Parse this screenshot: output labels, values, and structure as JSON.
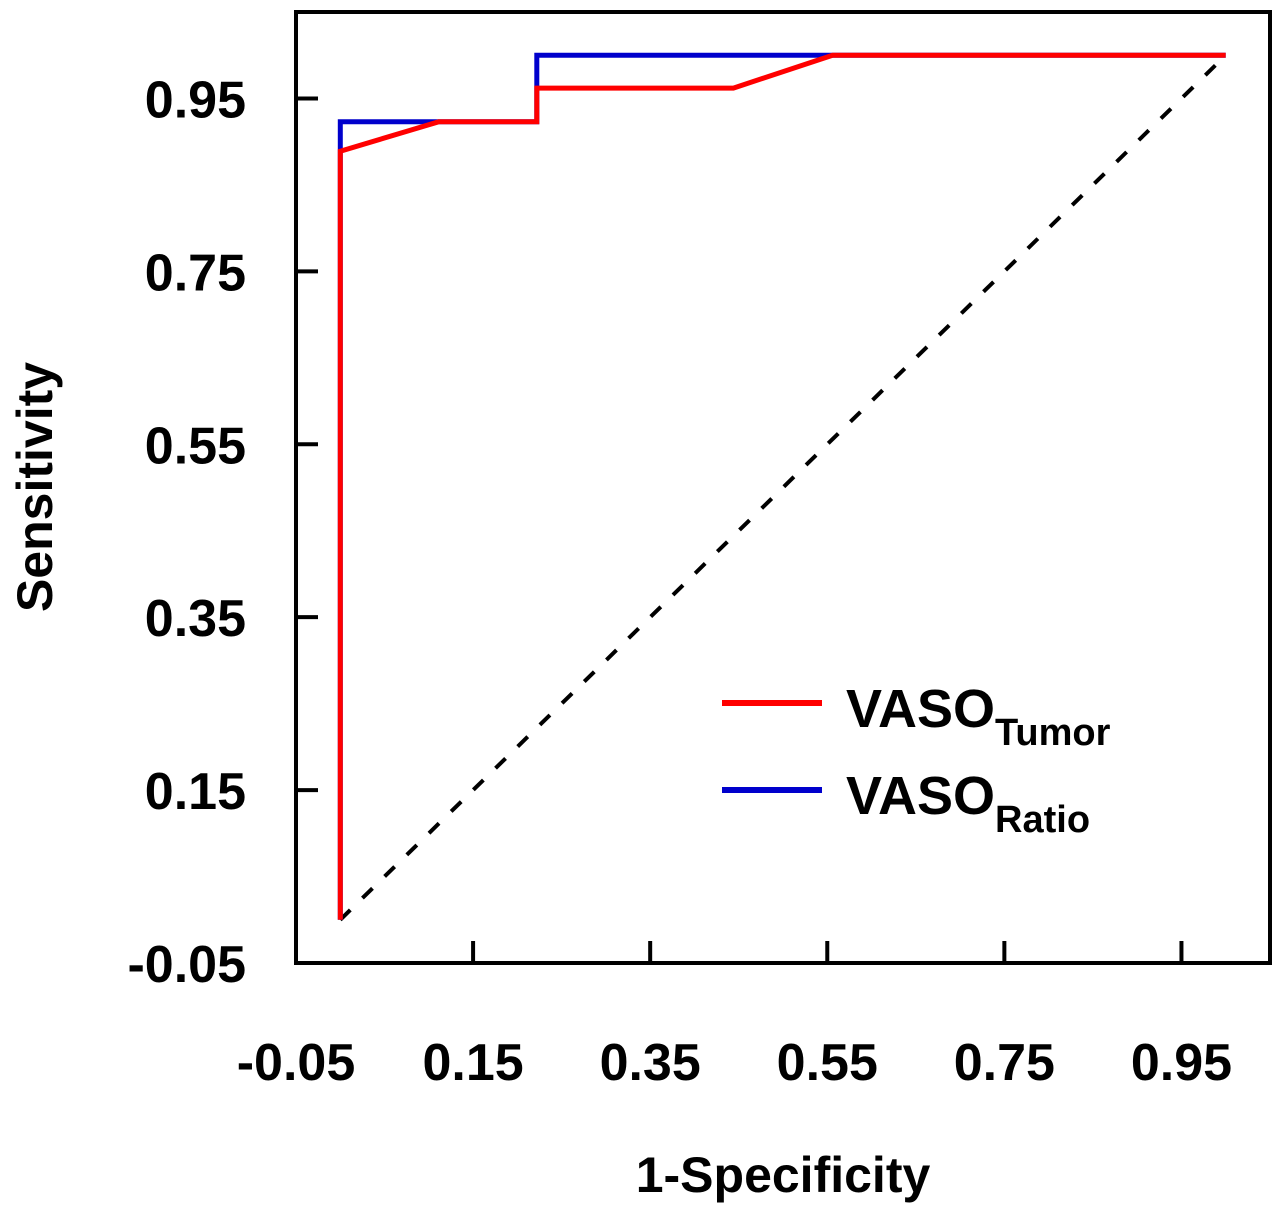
{
  "chart_data": {
    "type": "line",
    "xlabel": "1-Specificity",
    "ylabel": "Sensitivity",
    "xlim": [
      -0.05,
      1.05
    ],
    "ylim": [
      -0.05,
      1.05
    ],
    "x_ticks": [
      -0.05,
      0.15,
      0.35,
      0.55,
      0.75,
      0.95
    ],
    "y_ticks": [
      -0.05,
      0.15,
      0.35,
      0.55,
      0.75,
      0.95
    ],
    "x_tick_labels": [
      "-0.05",
      "0.15",
      "0.35",
      "0.55",
      "0.75",
      "0.95"
    ],
    "y_tick_labels": [
      "-0.05",
      "0.15",
      "0.35",
      "0.55",
      "0.75",
      "0.95"
    ],
    "grid": false,
    "legend_position": "bottom-right",
    "series": [
      {
        "id": "tumor",
        "name": "VASO",
        "name_subscript": "Tumor",
        "color": "#ff0000",
        "x": [
          0.0,
          0.0,
          0.111,
          0.222,
          0.222,
          0.444,
          0.556,
          1.0
        ],
        "y": [
          0.0,
          0.889,
          0.923,
          0.923,
          0.962,
          0.962,
          1.0,
          1.0
        ]
      },
      {
        "id": "ratio",
        "name": "VASO",
        "name_subscript": "Ratio",
        "color": "#0000cc",
        "x": [
          0.0,
          0.0,
          0.222,
          0.222,
          1.0
        ],
        "y": [
          0.0,
          0.923,
          0.923,
          1.0,
          1.0
        ]
      }
    ],
    "reference_line": {
      "x": [
        0.0,
        1.0
      ],
      "y": [
        0.0,
        1.0
      ],
      "color": "#000000",
      "style": "dashed"
    }
  }
}
